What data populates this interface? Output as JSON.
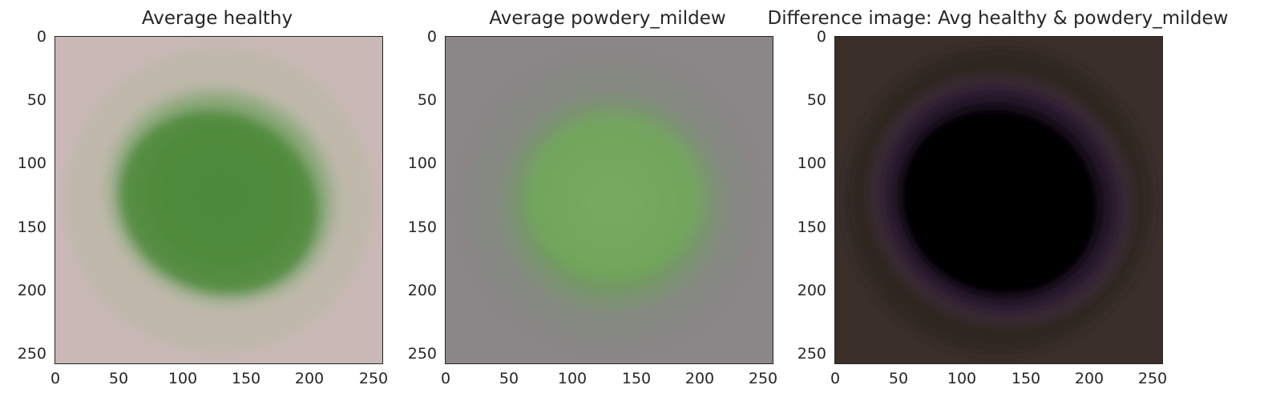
{
  "panels": [
    {
      "title": "Average healthy",
      "xticks": [
        "0",
        "50",
        "100",
        "150",
        "200",
        "250"
      ],
      "yticks": [
        "0",
        "50",
        "100",
        "150",
        "200",
        "250"
      ]
    },
    {
      "title": "Average powdery_mildew",
      "xticks": [
        "0",
        "50",
        "100",
        "150",
        "200",
        "250"
      ],
      "yticks": [
        "0",
        "50",
        "100",
        "150",
        "200",
        "250"
      ]
    },
    {
      "title": "Difference image: Avg healthy & powdery_mildew",
      "xticks": [
        "0",
        "50",
        "100",
        "150",
        "200",
        "250"
      ],
      "yticks": [
        "0",
        "50",
        "100",
        "150",
        "200",
        "250"
      ]
    }
  ],
  "colors": {
    "healthy_background": "#c8b6b4",
    "healthy_leaf": "#4f8a3c",
    "mildew_background": "#8a8587",
    "mildew_leaf": "#6fa456",
    "difference_background": "#3a2e29",
    "difference_center": "#000000",
    "difference_fringe": "#4a2a52"
  }
}
